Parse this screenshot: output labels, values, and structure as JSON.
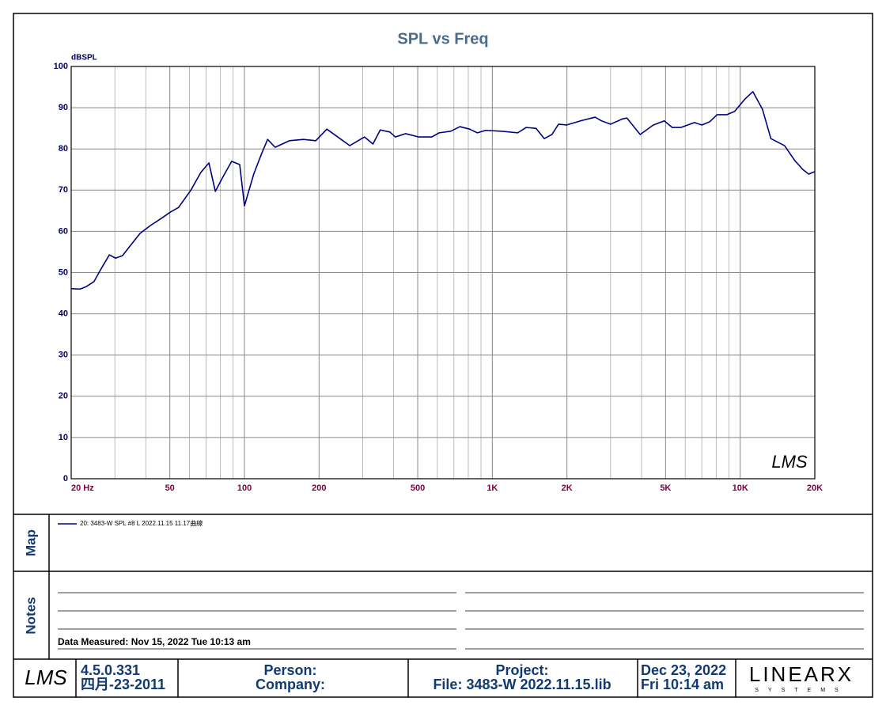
{
  "chart_data": {
    "type": "line",
    "title": "SPL vs Freq",
    "ylabel": "dBSPL",
    "x": [
      20,
      21.7,
      23,
      24.7,
      26.4,
      28.5,
      30.2,
      32.2,
      34.7,
      37.9,
      41.7,
      46.6,
      50.3,
      54.2,
      60.8,
      66.7,
      71.9,
      76.3,
      81.7,
      88.8,
      95.7,
      100,
      109,
      117,
      124,
      133,
      152,
      173,
      194,
      215,
      243,
      266,
      305,
      330,
      353,
      386,
      406,
      447,
      505,
      570,
      610,
      680,
      740,
      810,
      870,
      940,
      1085,
      1266,
      1370,
      1500,
      1620,
      1740,
      1850,
      1990,
      2300,
      2600,
      2760,
      3000,
      3360,
      3490,
      3950,
      4460,
      4940,
      5320,
      5760,
      6540,
      7000,
      7540,
      8070,
      8820,
      9500,
      10450,
      11250,
      12300,
      13300,
      15100,
      16600,
      17900,
      18900,
      20000
    ],
    "series": [
      {
        "name": "20: 3483-W SPL #8 L 2022.11.15 11.17曲線",
        "color": "#000080",
        "values": [
          46.1,
          46,
          46.6,
          47.8,
          50.9,
          54.3,
          53.5,
          54.1,
          56.6,
          59.5,
          61.4,
          63.3,
          64.7,
          65.8,
          70,
          74.3,
          76.6,
          69.7,
          73.1,
          77,
          76.2,
          66.2,
          73.9,
          78.7,
          82.3,
          80.4,
          82,
          82.3,
          82,
          84.8,
          82.5,
          80.8,
          82.9,
          81.2,
          84.6,
          84.1,
          82.9,
          83.7,
          82.9,
          82.9,
          83.9,
          84.3,
          85.4,
          84.8,
          83.9,
          84.5,
          84.3,
          83.9,
          85.2,
          85,
          82.5,
          83.5,
          86,
          85.8,
          86.9,
          87.7,
          86.8,
          86,
          87.3,
          87.5,
          83.5,
          85.8,
          86.8,
          85.2,
          85.2,
          86.4,
          85.8,
          86.6,
          88.3,
          88.3,
          89.1,
          92.1,
          93.9,
          89.6,
          82.5,
          80.8,
          77.2,
          75,
          73.9,
          74.5
        ]
      }
    ],
    "xlim": [
      20,
      20000
    ],
    "xscale": "log",
    "xticks": [
      {
        "value": 20,
        "label": "20 Hz"
      },
      50,
      100,
      200,
      500,
      {
        "value": 1000,
        "label": "1K"
      },
      {
        "value": 2000,
        "label": "2K"
      },
      {
        "value": 5000,
        "label": "5K"
      },
      {
        "value": 10000,
        "label": "10K"
      },
      {
        "value": 20000,
        "label": "20K"
      }
    ],
    "ylim": [
      0,
      100
    ],
    "yticks": [
      0,
      10,
      20,
      30,
      40,
      50,
      60,
      70,
      80,
      90,
      100
    ],
    "grid": true
  },
  "logo": "LMS",
  "map_title": "Map",
  "notes": {
    "title": "Notes",
    "data_measured": "Data Measured: Nov 15, 2022  Tue 10:13 am"
  },
  "footer": {
    "version": "4.5.0.331",
    "build_date": "四月-23-2011",
    "person": "Person:",
    "company": "Company:",
    "project": "Project:",
    "file": "File: 3483-W 2022.11.15.lib",
    "date": "Dec 23, 2022",
    "time": "Fri 10:14 am",
    "brand": "LINEARX",
    "brand_sub": "SYSTEMS"
  }
}
